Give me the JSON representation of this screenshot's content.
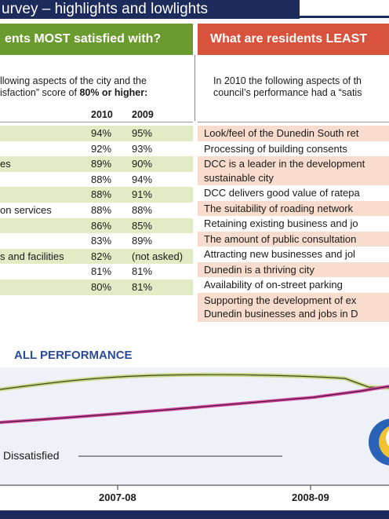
{
  "header": {
    "title": "urvey – highlights and lowlights"
  },
  "most": {
    "heading": "ents MOST satisfied with?",
    "intro": [
      "llowing aspects of the city and the",
      "isfaction” score of "
    ],
    "intro_bold": "80% or higher",
    "intro_end": ":",
    "columns": [
      "2010",
      "2009"
    ],
    "rows": [
      {
        "y2010": "94%",
        "y2009": "95%"
      },
      {
        "y2010": "92%",
        "y2009": "93%"
      },
      {
        "label": "es",
        "y2010": "89%",
        "y2009": "90%"
      },
      {
        "y2010": "88%",
        "y2009": "94%"
      },
      {
        "y2010": "88%",
        "y2009": "91%"
      },
      {
        "label": "on services",
        "y2010": "88%",
        "y2009": "88%"
      },
      {
        "y2010": "86%",
        "y2009": "85%"
      },
      {
        "y2010": "83%",
        "y2009": "89%"
      },
      {
        "label": "s and facilities",
        "y2010": "82%",
        "y2009": "(not asked)"
      },
      {
        "y2010": "81%",
        "y2009": "81%"
      },
      {
        "y2010": "80%",
        "y2009": "81%"
      }
    ]
  },
  "least": {
    "heading": "What are residents LEAST",
    "intro": [
      "In 2010 the following aspects of th",
      "council’s performance had a “satis"
    ],
    "rows": [
      [
        "Look/feel of the Dunedin South ret"
      ],
      [
        "Processing of building consents"
      ],
      [
        "DCC is a leader in the development",
        "sustainable city"
      ],
      [
        "DCC delivers good value of ratepa"
      ],
      [
        "The suitability of roading network"
      ],
      [
        "Retaining existing business and jo"
      ],
      [
        "The amount of public consultation"
      ],
      [
        "Attracting new businesses and jol"
      ],
      [
        "Dunedin is a thriving city"
      ],
      [
        "Availability of on-street parking"
      ],
      [
        "Supporting the development of ex",
        "Dunedin businesses and jobs in D"
      ]
    ]
  },
  "performance": {
    "title": "ALL PERFORMANCE",
    "series_label": "Dissatisfied",
    "x_labels": [
      "2007-08",
      "2008-09"
    ]
  }
}
